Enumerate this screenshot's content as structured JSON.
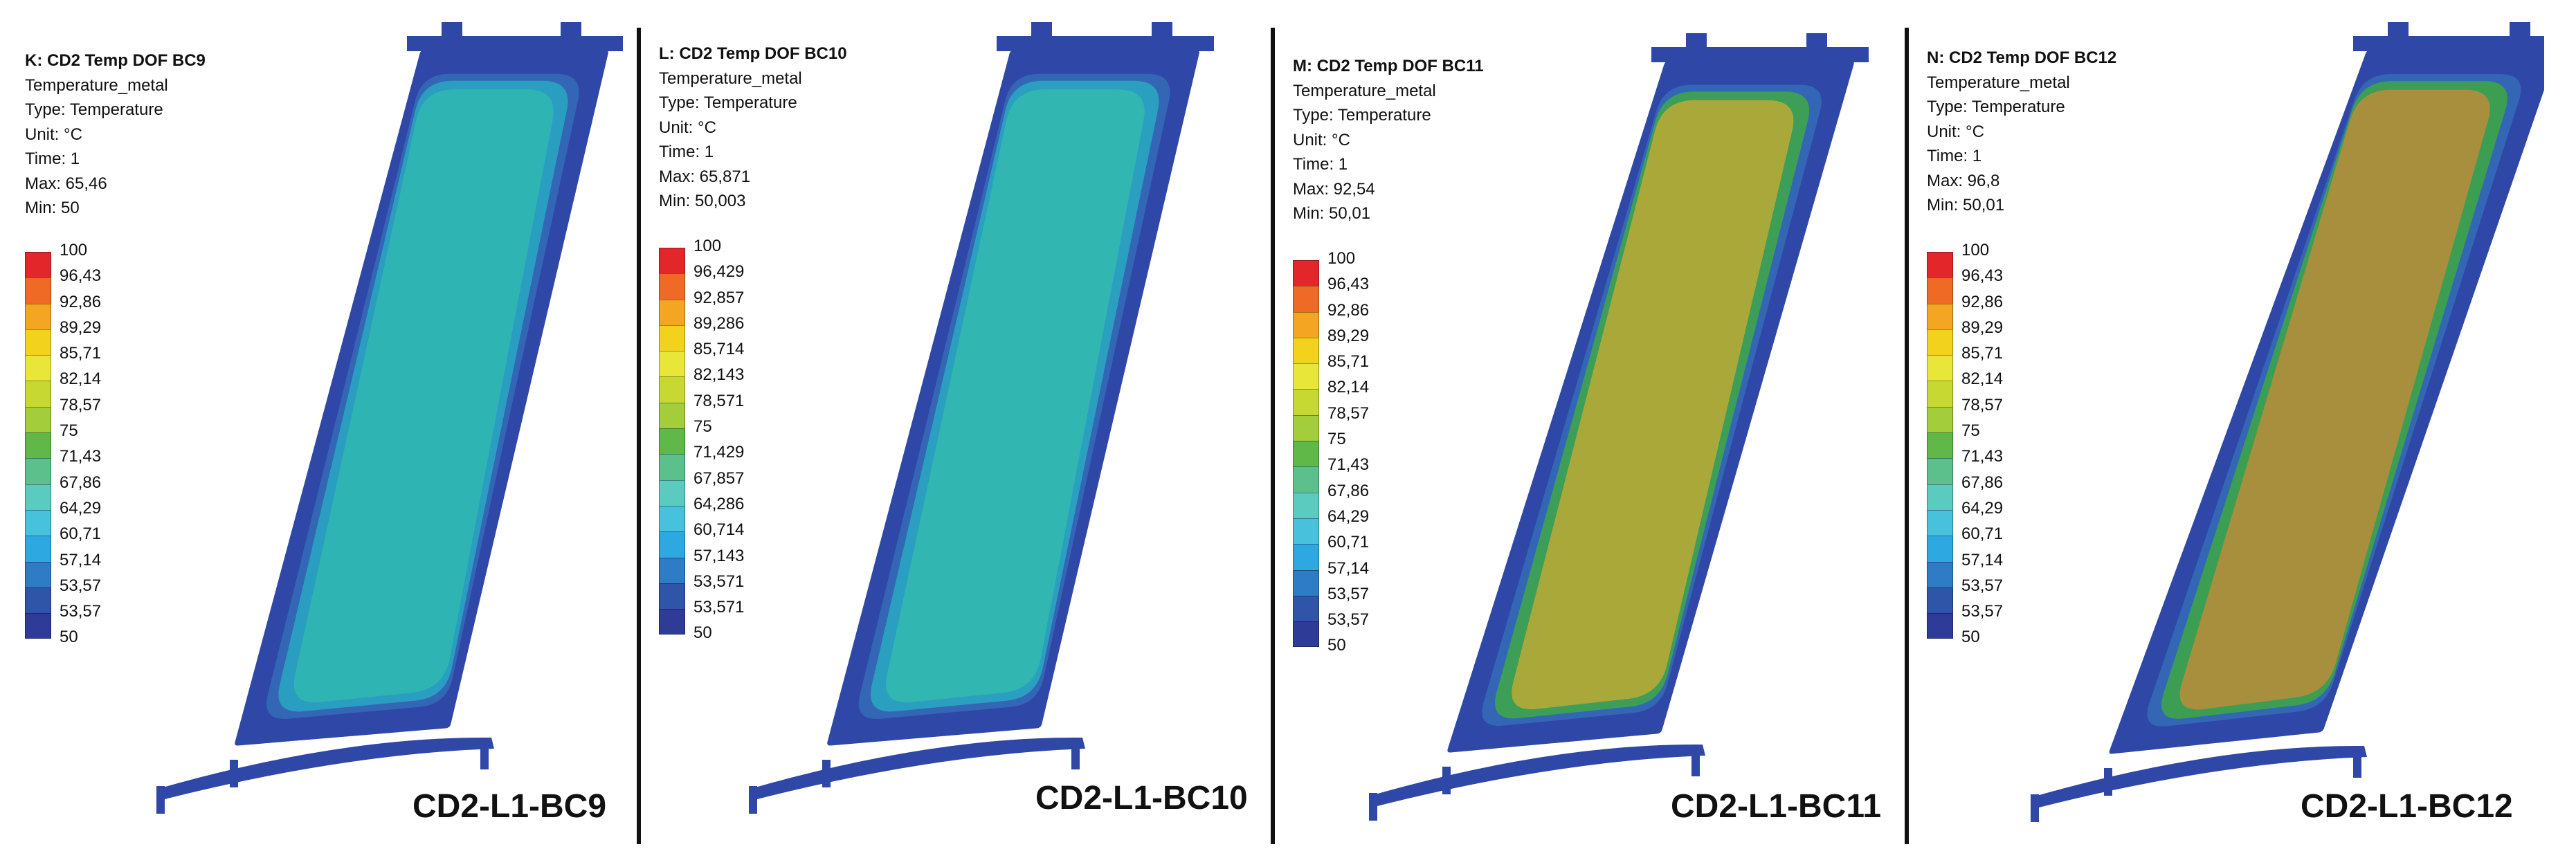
{
  "panels": [
    {
      "title": "K: CD2 Temp DOF BC9",
      "variable": "Temperature_metal",
      "type": "Type: Temperature",
      "unit": "Unit: °C",
      "time": "Time: 1",
      "max": "Max: 65,46",
      "min": "Min: 50",
      "ticks": [
        "100",
        "96,43",
        "92,86",
        "89,29",
        "85,71",
        "82,14",
        "78,57",
        "75",
        "71,43",
        "67,86",
        "64,29",
        "60,71",
        "57,14",
        "53,57",
        "50"
      ],
      "label": "CD2-L1-BC9",
      "core_color": "#2fb4b4",
      "mid_color": "#2a9ec0",
      "edge_color": "#2f47a6"
    },
    {
      "title": "L: CD2 Temp DOF BC10",
      "variable": "Temperature_metal",
      "type": "Type: Temperature",
      "unit": "Unit: °C",
      "time": "Time: 1",
      "max": "Max: 65,871",
      "min": "Min: 50,003",
      "ticks": [
        "100",
        "96,429",
        "92,857",
        "89,286",
        "85,714",
        "82,143",
        "78,571",
        "75",
        "71,429",
        "67,857",
        "64,286",
        "60,714",
        "57,143",
        "53,571",
        "50"
      ],
      "label": "CD2-L1-BC10",
      "core_color": "#31b6b2",
      "mid_color": "#2a9fc0",
      "edge_color": "#2f47a6"
    },
    {
      "title": "M: CD2 Temp DOF BC11",
      "variable": "Temperature_metal",
      "type": "Type: Temperature",
      "unit": "Unit: °C",
      "time": "Time: 1",
      "max": "Max: 92,54",
      "min": "Min: 50,01",
      "ticks": [
        "100",
        "96,43",
        "92,86",
        "89,29",
        "85,71",
        "82,14",
        "78,57",
        "75",
        "71,43",
        "67,86",
        "64,29",
        "60,71",
        "57,14",
        "53,57",
        "50"
      ],
      "label": "CD2-L1-BC11",
      "core_color": "#a9a83a",
      "mid_color": "#3d9e58",
      "edge_color": "#2f47a6"
    },
    {
      "title": "N: CD2 Temp DOF BC12",
      "variable": "Temperature_metal",
      "type": "Type: Temperature",
      "unit": "Unit: °C",
      "time": "Time: 1",
      "max": "Max: 96,8",
      "min": "Min: 50,01",
      "ticks": [
        "100",
        "96,43",
        "92,86",
        "89,29",
        "85,71",
        "82,14",
        "78,57",
        "75",
        "71,43",
        "67,86",
        "64,29",
        "60,71",
        "57,14",
        "53,57",
        "50"
      ],
      "label": "CD2-L1-BC12",
      "core_color": "#a88f3e",
      "mid_color": "#3b9e52",
      "edge_color": "#2f47a6"
    }
  ],
  "legend_colors": [
    "#e3262a",
    "#ef6b25",
    "#f4a623",
    "#f2d21d",
    "#e9e63a",
    "#c8d832",
    "#a3cd3b",
    "#5fb848",
    "#5cc08d",
    "#5ccbbf",
    "#47c1dc",
    "#2ea8e0",
    "#2f7cc6",
    "#2f55a8",
    "#2e3c98"
  ]
}
